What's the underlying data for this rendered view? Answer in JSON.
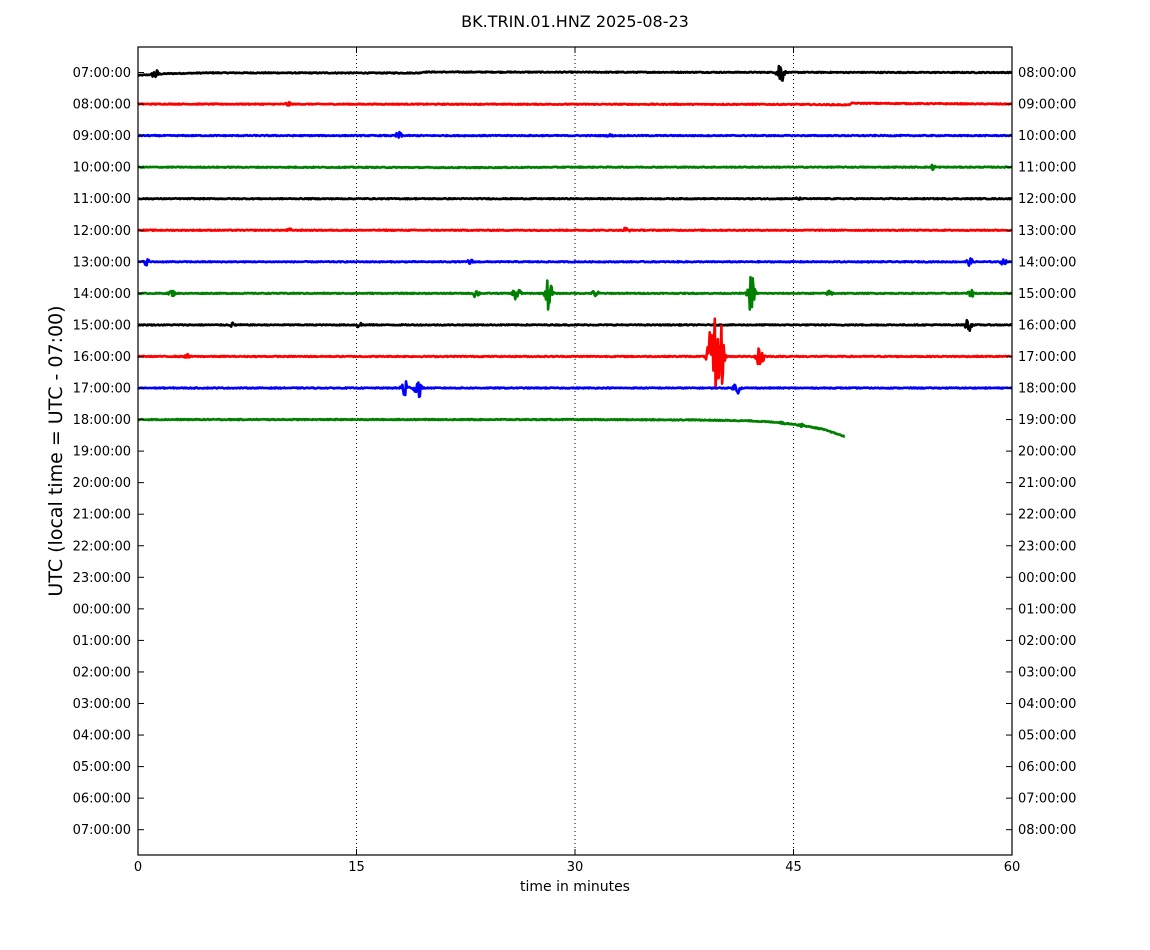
{
  "chart_data": {
    "type": "line",
    "title": "BK.TRIN.01.HNZ 2025-08-23",
    "xlabel": "time in minutes",
    "ylabel": "UTC (local time = UTC - 07:00)",
    "xlim": [
      0,
      60
    ],
    "x_ticks": [
      0,
      15,
      30,
      45,
      60
    ],
    "vertical_grid": "dotted at 15, 30, 45",
    "left_tick_labels": [
      "07:00:00",
      "08:00:00",
      "09:00:00",
      "10:00:00",
      "11:00:00",
      "12:00:00",
      "13:00:00",
      "14:00:00",
      "15:00:00",
      "16:00:00",
      "17:00:00",
      "18:00:00",
      "19:00:00",
      "20:00:00",
      "21:00:00",
      "22:00:00",
      "23:00:00",
      "00:00:00",
      "01:00:00",
      "02:00:00",
      "03:00:00",
      "04:00:00",
      "05:00:00",
      "06:00:00",
      "07:00:00"
    ],
    "right_tick_labels": [
      "08:00:00",
      "09:00:00",
      "10:00:00",
      "11:00:00",
      "12:00:00",
      "13:00:00",
      "14:00:00",
      "15:00:00",
      "16:00:00",
      "17:00:00",
      "18:00:00",
      "19:00:00",
      "20:00:00",
      "21:00:00",
      "22:00:00",
      "23:00:00",
      "00:00:00",
      "01:00:00",
      "02:00:00",
      "03:00:00",
      "04:00:00",
      "05:00:00",
      "06:00:00",
      "07:00:00",
      "08:00:00"
    ],
    "series": [
      {
        "row": 0,
        "color": "#000000",
        "x_end": 60,
        "baseline": [
          [
            0,
            -0.18
          ],
          [
            2,
            -0.07
          ],
          [
            5,
            -0.02
          ],
          [
            19.3,
            -0.03
          ],
          [
            19.6,
            0.03
          ],
          [
            30,
            0.02
          ],
          [
            60,
            0
          ]
        ],
        "bursts": [
          [
            1.2,
            0.35
          ],
          [
            44.1,
            0.95
          ]
        ]
      },
      {
        "row": 1,
        "color": "#ff0000",
        "x_end": 60,
        "baseline": [
          [
            0,
            0
          ],
          [
            45,
            -0.02
          ],
          [
            48.8,
            -0.05
          ],
          [
            49,
            0.05
          ],
          [
            60,
            0
          ]
        ],
        "bursts": [
          [
            10.3,
            0.15
          ]
        ]
      },
      {
        "row": 2,
        "color": "#0000ff",
        "x_end": 60,
        "baseline": [
          [
            0,
            0
          ],
          [
            60,
            0
          ]
        ],
        "bursts": [
          [
            17.9,
            0.25
          ],
          [
            32.4,
            0.1
          ]
        ]
      },
      {
        "row": 3,
        "color": "#008000",
        "x_end": 60,
        "baseline": [
          [
            0,
            0
          ],
          [
            15,
            -0.01
          ],
          [
            23,
            -0.03
          ],
          [
            30,
            0
          ],
          [
            60,
            0
          ]
        ],
        "bursts": [
          [
            54.6,
            0.2
          ]
        ]
      },
      {
        "row": 4,
        "color": "#000000",
        "x_end": 60,
        "baseline": [
          [
            0,
            0
          ],
          [
            60,
            0
          ]
        ],
        "bursts": [
          [
            45.3,
            0.1
          ]
        ]
      },
      {
        "row": 5,
        "color": "#ff0000",
        "x_end": 60,
        "baseline": [
          [
            0,
            0
          ],
          [
            60,
            0
          ]
        ],
        "bursts": [
          [
            10.4,
            0.12
          ],
          [
            33.5,
            0.22
          ]
        ]
      },
      {
        "row": 6,
        "color": "#0000ff",
        "x_end": 60,
        "baseline": [
          [
            0,
            0
          ],
          [
            60,
            0
          ]
        ],
        "bursts": [
          [
            0.6,
            0.22
          ],
          [
            22.8,
            0.2
          ],
          [
            57.1,
            0.25
          ],
          [
            59.4,
            0.2
          ]
        ]
      },
      {
        "row": 7,
        "color": "#008000",
        "x_end": 60,
        "baseline": [
          [
            0,
            0
          ],
          [
            60,
            0
          ]
        ],
        "bursts": [
          [
            2.3,
            0.25
          ],
          [
            23.2,
            0.3
          ],
          [
            26,
            0.7
          ],
          [
            28.2,
            1.1
          ],
          [
            31.4,
            0.25
          ],
          [
            42.1,
            1.3
          ],
          [
            47.5,
            0.2
          ],
          [
            57.2,
            0.25
          ]
        ]
      },
      {
        "row": 8,
        "color": "#000000",
        "x_end": 60,
        "baseline": [
          [
            0,
            0
          ],
          [
            60,
            0
          ]
        ],
        "bursts": [
          [
            6.5,
            0.15
          ],
          [
            15.2,
            0.2
          ],
          [
            57,
            0.45
          ]
        ]
      },
      {
        "row": 9,
        "color": "#ff0000",
        "x_end": 60,
        "baseline": [
          [
            0,
            0
          ],
          [
            60,
            0
          ]
        ],
        "bursts": [
          [
            3.4,
            0.15
          ],
          [
            39.3,
            1.6
          ],
          [
            39.6,
            3.0
          ],
          [
            40,
            2.3
          ],
          [
            42.7,
            1.2
          ]
        ]
      },
      {
        "row": 10,
        "color": "#0000ff",
        "x_end": 60,
        "baseline": [
          [
            0,
            0
          ],
          [
            60,
            0
          ]
        ],
        "bursts": [
          [
            18.3,
            0.8
          ],
          [
            19.2,
            0.8
          ],
          [
            41.1,
            0.45
          ]
        ]
      },
      {
        "row": 11,
        "color": "#008000",
        "x_end": 48.5,
        "baseline": [
          [
            0,
            0
          ],
          [
            30,
            0
          ],
          [
            38,
            -0.02
          ],
          [
            42,
            -0.08
          ],
          [
            44,
            -0.18
          ],
          [
            45.5,
            -0.35
          ],
          [
            47,
            -0.6
          ],
          [
            48.5,
            -1.05
          ]
        ],
        "bursts": [
          [
            44.3,
            0.1
          ],
          [
            45.5,
            0.12
          ]
        ]
      }
    ]
  }
}
